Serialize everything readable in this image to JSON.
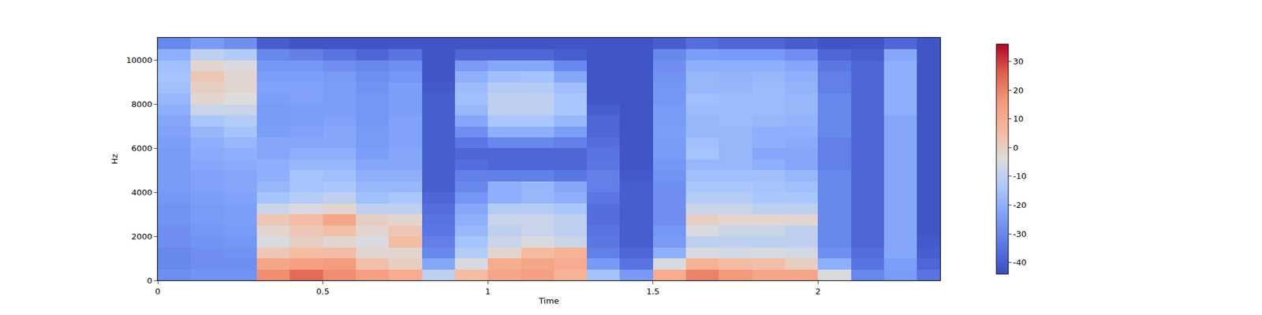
{
  "chart_data": {
    "type": "heatmap",
    "xlabel": "Time",
    "ylabel": "Hz",
    "x": [
      0,
      0.1,
      0.2,
      0.3,
      0.4,
      0.5,
      0.6,
      0.7,
      0.8,
      0.9,
      1.0,
      1.1,
      1.2,
      1.3,
      1.4,
      1.5,
      1.6,
      1.7,
      1.8,
      1.9,
      2.0,
      2.1,
      2.2,
      2.3,
      2.37
    ],
    "y": [
      0,
      500,
      1000,
      1500,
      2000,
      2500,
      3000,
      3500,
      4000,
      4500,
      5000,
      5500,
      6000,
      6500,
      7000,
      7500,
      8000,
      8500,
      9000,
      9500,
      10000,
      10500,
      11025
    ],
    "cells": [
      [
        -28,
        -30,
        -30,
        -28,
        -28,
        -27,
        -27,
        -26,
        -25,
        -25,
        -25,
        -25,
        -24,
        -23,
        -22,
        -20,
        -18,
        -16,
        -15,
        -16,
        -20,
        -30
      ],
      [
        -27,
        -28,
        -28,
        -27,
        -26,
        -25,
        -25,
        -24,
        -23,
        -23,
        -22,
        -21,
        -20,
        -18,
        -14,
        -8,
        -2,
        0,
        2,
        -2,
        -10,
        -25
      ],
      [
        -27,
        -28,
        -27,
        -26,
        -25,
        -24,
        -24,
        -23,
        -22,
        -22,
        -21,
        -20,
        -18,
        -15,
        -12,
        -8,
        -4,
        -2,
        -2,
        -5,
        -12,
        -28
      ],
      [
        18,
        12,
        2,
        -5,
        -2,
        2,
        -8,
        -15,
        -18,
        -20,
        -20,
        -22,
        -22,
        -24,
        -25,
        -25,
        -24,
        -23,
        -24,
        -26,
        -30,
        -40
      ],
      [
        24,
        14,
        5,
        0,
        2,
        5,
        -5,
        -12,
        -15,
        -15,
        -18,
        -20,
        -22,
        -23,
        -24,
        -24,
        -23,
        -23,
        -24,
        -26,
        -32,
        -42
      ],
      [
        18,
        15,
        5,
        -2,
        4,
        12,
        -2,
        -10,
        -14,
        -16,
        -18,
        -20,
        -22,
        -22,
        -23,
        -24,
        -24,
        -24,
        -25,
        -28,
        -35,
        -42
      ],
      [
        14,
        4,
        -2,
        -5,
        -2,
        0,
        -10,
        -16,
        -18,
        -20,
        -22,
        -24,
        -25,
        -25,
        -26,
        -26,
        -26,
        -27,
        -28,
        -30,
        -38,
        -42
      ],
      [
        10,
        0,
        -2,
        5,
        2,
        -2,
        -10,
        -14,
        -18,
        -20,
        -22,
        -22,
        -23,
        -23,
        -23,
        -24,
        -24,
        -24,
        -26,
        -28,
        -35,
        -42
      ],
      [
        -10,
        -22,
        -30,
        -32,
        -34,
        -35,
        -36,
        -38,
        -40,
        -40,
        -40,
        -40,
        -40,
        -40,
        -40,
        -40,
        -40,
        -41,
        -42,
        -42,
        -42,
        -42
      ],
      [
        5,
        -5,
        -12,
        -15,
        -18,
        -20,
        -22,
        -26,
        -30,
        -32,
        -36,
        -38,
        -34,
        -28,
        -22,
        -18,
        -16,
        -17,
        -20,
        -25,
        -38,
        -42
      ],
      [
        12,
        10,
        -2,
        -8,
        -10,
        -8,
        -12,
        -20,
        -20,
        -32,
        -38,
        -38,
        -30,
        -20,
        -14,
        -10,
        -10,
        -12,
        -16,
        -22,
        -38,
        -42
      ],
      [
        14,
        12,
        5,
        -5,
        -8,
        -8,
        -12,
        -18,
        -18,
        -32,
        -38,
        -38,
        -30,
        -20,
        -14,
        -10,
        -10,
        -12,
        -15,
        -22,
        -38,
        -42
      ],
      [
        8,
        10,
        8,
        -8,
        -10,
        -10,
        -14,
        -20,
        -22,
        -34,
        -38,
        -38,
        -32,
        -24,
        -18,
        -14,
        -14,
        -16,
        -22,
        -30,
        -40,
        -42
      ],
      [
        -15,
        -25,
        -32,
        -34,
        -35,
        -36,
        -36,
        -34,
        -32,
        -32,
        -34,
        -35,
        -36,
        -38,
        -38,
        -40,
        -42,
        -42,
        -42,
        -42,
        -42,
        -42
      ],
      [
        -25,
        -35,
        -38,
        -40,
        -40,
        -40,
        -40,
        -40,
        -40,
        -41,
        -42,
        -42,
        -42,
        -42,
        -42,
        -42,
        -42,
        -42,
        -42,
        -42,
        -42,
        -42
      ],
      [
        10,
        -5,
        -20,
        -25,
        -26,
        -28,
        -28,
        -28,
        -28,
        -27,
        -26,
        -25,
        -25,
        -24,
        -25,
        -25,
        -26,
        -26,
        -27,
        -28,
        -30,
        -40
      ],
      [
        20,
        8,
        -5,
        -10,
        -5,
        0,
        -8,
        -12,
        -14,
        -16,
        -18,
        -15,
        -16,
        -18,
        -18,
        -17,
        -16,
        -18,
        -18,
        -20,
        -24,
        -36
      ],
      [
        16,
        5,
        -6,
        -10,
        -8,
        -2,
        -8,
        -12,
        -14,
        -16,
        -18,
        -18,
        -18,
        -18,
        -17,
        -17,
        -17,
        -18,
        -19,
        -20,
        -25,
        -38
      ],
      [
        12,
        4,
        -5,
        -10,
        -8,
        -2,
        -10,
        -14,
        -15,
        -16,
        -20,
        -22,
        -20,
        -20,
        -18,
        -17,
        -17,
        -17,
        -18,
        -20,
        -25,
        -38
      ],
      [
        12,
        0,
        -6,
        -10,
        -10,
        -2,
        -10,
        -14,
        -16,
        -18,
        -22,
        -22,
        -21,
        -20,
        -19,
        -18,
        -18,
        -19,
        -20,
        -22,
        -28,
        -40
      ],
      [
        -5,
        -20,
        -28,
        -30,
        -30,
        -30,
        -30,
        -30,
        -30,
        -30,
        -32,
        -32,
        -32,
        -30,
        -30,
        -30,
        -30,
        -32,
        -32,
        -34,
        -38,
        -42
      ],
      [
        -30,
        -35,
        -36,
        -38,
        -38,
        -38,
        -38,
        -38,
        -38,
        -38,
        -38,
        -38,
        -38,
        -38,
        -38,
        -38,
        -38,
        -38,
        -38,
        -38,
        -40,
        -42
      ],
      [
        -25,
        -24,
        -22,
        -22,
        -22,
        -22,
        -22,
        -22,
        -22,
        -22,
        -22,
        -22,
        -22,
        -22,
        -22,
        -20,
        -20,
        -20,
        -20,
        -20,
        -22,
        -38
      ],
      [
        -35,
        -38,
        -40,
        -41,
        -42,
        -42,
        -42,
        -42,
        -42,
        -42,
        -42,
        -42,
        -42,
        -42,
        -42,
        -42,
        -42,
        -42,
        -42,
        -42,
        -42,
        -42
      ]
    ],
    "xlim": [
      0,
      2.37
    ],
    "ylim": [
      0,
      11025
    ],
    "xticks": [
      0,
      0.5,
      1,
      1.5,
      2
    ],
    "yticks": [
      0,
      2000,
      4000,
      6000,
      8000,
      10000
    ],
    "colorbar": {
      "range": [
        -44,
        36
      ],
      "ticks": [
        -40,
        -30,
        -20,
        -10,
        0,
        10,
        20,
        30
      ]
    }
  }
}
